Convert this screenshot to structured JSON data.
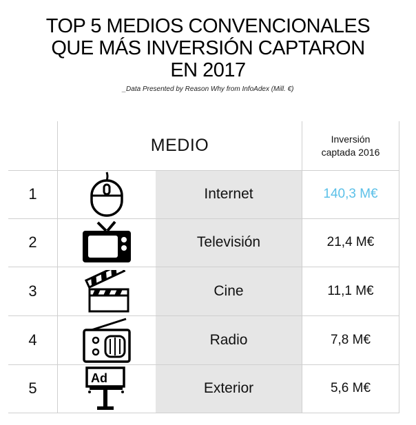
{
  "title_lines": [
    "TOP 5 MEDIOS CONVENCIONALES",
    "QUE MÁS INVERSIÓN CAPTARON",
    "EN 2017"
  ],
  "subtitle": "_Data Presented by Reason Why from InfoAdex (Mill. €)",
  "header": {
    "medio": "MEDIO",
    "inversion": "Inversión\ncaptada 2016"
  },
  "highlight_color": "#5bc0e8",
  "shade_color": "#e6e6e6",
  "chart_data": {
    "type": "table",
    "title": "TOP 5 MEDIOS CONVENCIONALES QUE MÁS INVERSIÓN CAPTARON EN 2017",
    "columns": [
      "",
      "MEDIO",
      "Inversión captada 2016"
    ],
    "rows": [
      {
        "rank": "1",
        "icon": "computer-mouse-icon",
        "medio": "Internet",
        "value": 140.3,
        "value_label": "140,3 M€",
        "highlight": true
      },
      {
        "rank": "2",
        "icon": "television-icon",
        "medio": "Televisión",
        "value": 21.4,
        "value_label": "21,4 M€",
        "highlight": false
      },
      {
        "rank": "3",
        "icon": "clapperboard-icon",
        "medio": "Cine",
        "value": 11.1,
        "value_label": "11,1 M€",
        "highlight": false
      },
      {
        "rank": "4",
        "icon": "radio-icon",
        "medio": "Radio",
        "value": 7.8,
        "value_label": "7,8 M€",
        "highlight": false
      },
      {
        "rank": "5",
        "icon": "billboard-icon",
        "medio": "Exterior",
        "value": 5.6,
        "value_label": "5,6 M€",
        "highlight": false
      }
    ],
    "unit": "M€"
  }
}
